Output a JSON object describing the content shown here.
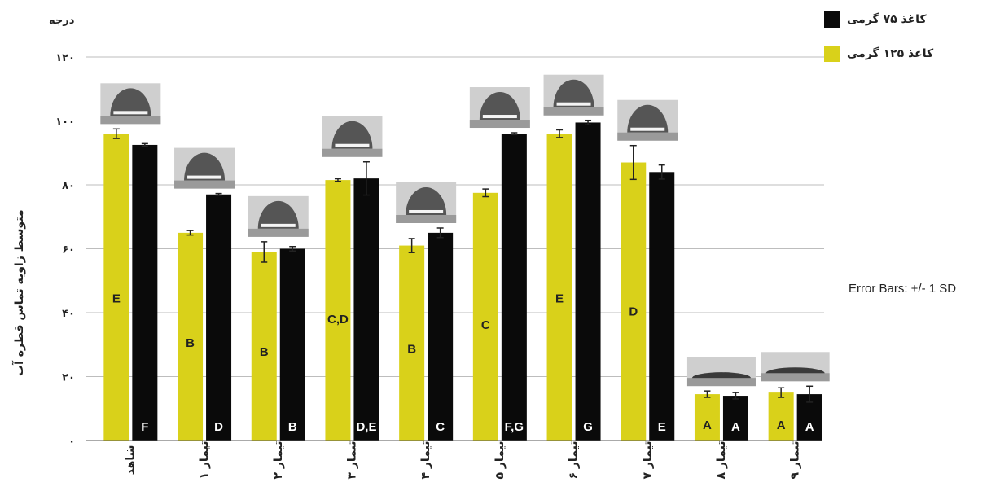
{
  "chart_data": {
    "type": "bar",
    "ylabel": "متوسط زاویه تماس قطره آب",
    "yunit": "درجه",
    "ylim": [
      0,
      125
    ],
    "yticks": [
      0,
      20,
      40,
      60,
      80,
      100,
      120
    ],
    "ytick_labels": [
      "۰",
      "۲۰",
      "۴۰",
      "۶۰",
      "۸۰",
      "۱۰۰",
      "۱۲۰"
    ],
    "grid": true,
    "legend_placement": "top-right",
    "categories": [
      "شاهد",
      "تیمار ۱",
      "تیمار ۲",
      "تیمار ۳",
      "تیمار ۴",
      "تیمار ۵",
      "تیمار ۶",
      "تیمار ۷",
      "تیمار ۸",
      "تیمار ۹"
    ],
    "series": [
      {
        "name": "کاغذ ۱۲۵ گرمی",
        "color": "#d9d11a",
        "values": [
          96,
          65,
          59,
          81.5,
          61,
          77.5,
          96,
          87,
          14.5,
          15
        ],
        "errors": [
          1.5,
          0.7,
          3.2,
          0.4,
          2.2,
          1.2,
          1.2,
          5.3,
          1,
          1.5
        ],
        "letters": [
          "E",
          "B",
          "B",
          "C,D",
          "B",
          "C",
          "E",
          "D",
          "A",
          "A"
        ]
      },
      {
        "name": "کاغذ ۷۵ گرمی",
        "color": "#0a0a0a",
        "values": [
          92.5,
          77,
          60,
          82,
          65,
          96,
          99.5,
          84,
          14,
          14.5
        ],
        "errors": [
          0.4,
          0.3,
          0.7,
          5.2,
          1.5,
          0.3,
          0.7,
          2.2,
          1,
          2.5
        ],
        "letters": [
          "F",
          "D",
          "B",
          "D,E",
          "C",
          "F,G",
          "G",
          "E",
          "A",
          "A"
        ]
      }
    ],
    "annotation": "Error Bars: +/- 1 SD"
  }
}
